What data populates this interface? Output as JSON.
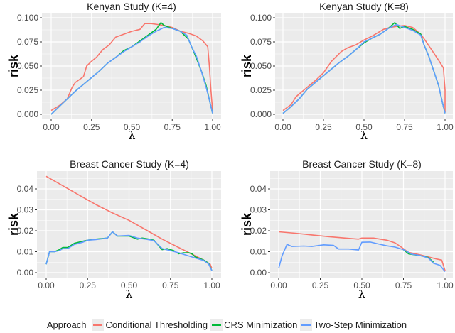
{
  "chart_data": [
    {
      "type": "line",
      "title": "Kenyan Study (K=4)",
      "xlabel": "λ",
      "ylabel": "risk",
      "xlim": [
        0,
        1
      ],
      "ylim": [
        0,
        0.1
      ],
      "xticks": [
        "0.00",
        "0.25",
        "0.50",
        "0.75",
        "1.00"
      ],
      "xtick_values": [
        0,
        0.25,
        0.5,
        0.75,
        1
      ],
      "yticks": [
        "0.000",
        "0.025",
        "0.050",
        "0.075",
        "0.100"
      ],
      "ytick_values": [
        0,
        0.025,
        0.05,
        0.075,
        0.1
      ],
      "grid": true,
      "series": [
        {
          "name": "Conditional Thresholding",
          "x": [
            0,
            0.05,
            0.1,
            0.13,
            0.15,
            0.2,
            0.22,
            0.25,
            0.28,
            0.32,
            0.36,
            0.4,
            0.45,
            0.5,
            0.55,
            0.58,
            0.62,
            0.66,
            0.7,
            0.75,
            0.8,
            0.85,
            0.9,
            0.94,
            0.97,
            0.98,
            0.99,
            1.0
          ],
          "y": [
            0.004,
            0.009,
            0.016,
            0.028,
            0.033,
            0.039,
            0.05,
            0.055,
            0.059,
            0.067,
            0.072,
            0.08,
            0.083,
            0.086,
            0.088,
            0.094,
            0.094,
            0.093,
            0.092,
            0.09,
            0.086,
            0.084,
            0.081,
            0.076,
            0.07,
            0.05,
            0.025,
            0.004
          ]
        },
        {
          "name": "CRS Minimization",
          "x": [
            0,
            0.05,
            0.1,
            0.15,
            0.2,
            0.25,
            0.3,
            0.35,
            0.4,
            0.45,
            0.5,
            0.55,
            0.6,
            0.65,
            0.68,
            0.7,
            0.75,
            0.8,
            0.85,
            0.88,
            0.9,
            0.93,
            0.96,
            0.98,
            1.0
          ],
          "y": [
            0,
            0.008,
            0.016,
            0.024,
            0.031,
            0.038,
            0.045,
            0.053,
            0.059,
            0.066,
            0.07,
            0.076,
            0.082,
            0.088,
            0.095,
            0.092,
            0.089,
            0.086,
            0.078,
            0.066,
            0.058,
            0.045,
            0.03,
            0.015,
            0.001
          ]
        },
        {
          "name": "Two-Step Minimization",
          "x": [
            0,
            0.05,
            0.1,
            0.15,
            0.2,
            0.25,
            0.3,
            0.35,
            0.4,
            0.45,
            0.5,
            0.55,
            0.6,
            0.65,
            0.7,
            0.75,
            0.8,
            0.84,
            0.87,
            0.9,
            0.93,
            0.96,
            0.98,
            1.0
          ],
          "y": [
            0,
            0.008,
            0.016,
            0.024,
            0.031,
            0.038,
            0.045,
            0.053,
            0.059,
            0.065,
            0.07,
            0.075,
            0.081,
            0.086,
            0.09,
            0.089,
            0.086,
            0.082,
            0.07,
            0.06,
            0.045,
            0.028,
            0.015,
            0.001
          ]
        }
      ]
    },
    {
      "type": "line",
      "title": "Kenyan Study (K=8)",
      "xlabel": "λ",
      "ylabel": "risk",
      "xlim": [
        0,
        1
      ],
      "ylim": [
        0,
        0.1
      ],
      "xticks": [
        "0.00",
        "0.25",
        "0.50",
        "0.75",
        "1.00"
      ],
      "xtick_values": [
        0,
        0.25,
        0.5,
        0.75,
        1
      ],
      "yticks": [
        "0.000",
        "0.025",
        "0.050",
        "0.075",
        "0.100"
      ],
      "ytick_values": [
        0,
        0.025,
        0.05,
        0.075,
        0.1
      ],
      "grid": true,
      "series": [
        {
          "name": "Conditional Thresholding",
          "x": [
            0,
            0.05,
            0.08,
            0.1,
            0.15,
            0.2,
            0.25,
            0.3,
            0.33,
            0.36,
            0.4,
            0.45,
            0.5,
            0.55,
            0.58,
            0.62,
            0.66,
            0.7,
            0.75,
            0.8,
            0.85,
            0.88,
            0.92,
            0.96,
            0.99,
            1.0,
            1.0
          ],
          "y": [
            0.004,
            0.01,
            0.018,
            0.021,
            0.028,
            0.035,
            0.043,
            0.055,
            0.06,
            0.065,
            0.069,
            0.072,
            0.077,
            0.081,
            0.084,
            0.088,
            0.09,
            0.091,
            0.092,
            0.09,
            0.083,
            0.076,
            0.066,
            0.056,
            0.048,
            0.025,
            0.002
          ]
        },
        {
          "name": "CRS Minimization",
          "x": [
            0,
            0.05,
            0.1,
            0.15,
            0.2,
            0.25,
            0.3,
            0.35,
            0.4,
            0.45,
            0.5,
            0.55,
            0.6,
            0.65,
            0.69,
            0.72,
            0.75,
            0.8,
            0.85,
            0.87,
            0.9,
            0.93,
            0.96,
            0.98,
            1.0
          ],
          "y": [
            0.001,
            0.008,
            0.016,
            0.026,
            0.033,
            0.04,
            0.047,
            0.054,
            0.06,
            0.067,
            0.074,
            0.079,
            0.083,
            0.089,
            0.095,
            0.089,
            0.091,
            0.088,
            0.083,
            0.072,
            0.06,
            0.045,
            0.03,
            0.015,
            0.001
          ]
        },
        {
          "name": "Two-Step Minimization",
          "x": [
            0,
            0.05,
            0.1,
            0.15,
            0.2,
            0.25,
            0.3,
            0.35,
            0.4,
            0.45,
            0.5,
            0.55,
            0.6,
            0.65,
            0.7,
            0.75,
            0.8,
            0.85,
            0.87,
            0.9,
            0.93,
            0.96,
            0.98,
            1.0
          ],
          "y": [
            0.001,
            0.008,
            0.016,
            0.026,
            0.033,
            0.04,
            0.047,
            0.054,
            0.06,
            0.067,
            0.075,
            0.079,
            0.083,
            0.089,
            0.093,
            0.09,
            0.087,
            0.082,
            0.072,
            0.06,
            0.045,
            0.03,
            0.015,
            0.001
          ]
        }
      ]
    },
    {
      "type": "line",
      "title": "Breast Cancer Study (K=4)",
      "xlabel": "λ",
      "ylabel": "risk",
      "xlim": [
        0,
        1
      ],
      "ylim": [
        0,
        0.047
      ],
      "xticks": [
        "0.00",
        "0.25",
        "0.50",
        "0.75",
        "1.00"
      ],
      "xtick_values": [
        0,
        0.25,
        0.5,
        0.75,
        1
      ],
      "yticks": [
        "0.00",
        "0.01",
        "0.02",
        "0.03",
        "0.04"
      ],
      "ytick_values": [
        0,
        0.01,
        0.02,
        0.03,
        0.04
      ],
      "grid": true,
      "series": [
        {
          "name": "Conditional Thresholding",
          "x": [
            0,
            0.1,
            0.2,
            0.3,
            0.4,
            0.5,
            0.6,
            0.7,
            0.8,
            0.9,
            0.95,
            0.99,
            1.0
          ],
          "y": [
            0.046,
            0.0415,
            0.037,
            0.0325,
            0.0285,
            0.025,
            0.0205,
            0.016,
            0.012,
            0.008,
            0.006,
            0.004,
            0.002
          ]
        },
        {
          "name": "CRS Minimization",
          "x": [
            0,
            0.02,
            0.05,
            0.08,
            0.1,
            0.13,
            0.17,
            0.22,
            0.25,
            0.3,
            0.37,
            0.4,
            0.43,
            0.5,
            0.55,
            0.58,
            0.62,
            0.65,
            0.7,
            0.73,
            0.77,
            0.8,
            0.83,
            0.86,
            0.88,
            0.9,
            0.95,
            0.98,
            1.0
          ],
          "y": [
            0.004,
            0.01,
            0.01,
            0.011,
            0.012,
            0.012,
            0.014,
            0.015,
            0.0155,
            0.016,
            0.0165,
            0.0195,
            0.0175,
            0.0175,
            0.016,
            0.0165,
            0.016,
            0.0155,
            0.011,
            0.0115,
            0.0105,
            0.009,
            0.0095,
            0.0095,
            0.009,
            0.0075,
            0.006,
            0.0045,
            0.001
          ]
        },
        {
          "name": "Two-Step Minimization",
          "x": [
            0,
            0.02,
            0.05,
            0.08,
            0.1,
            0.13,
            0.17,
            0.22,
            0.25,
            0.3,
            0.37,
            0.4,
            0.43,
            0.5,
            0.55,
            0.6,
            0.65,
            0.7,
            0.75,
            0.8,
            0.85,
            0.9,
            0.95,
            0.98,
            1.0
          ],
          "y": [
            0.004,
            0.01,
            0.01,
            0.0105,
            0.0115,
            0.0115,
            0.0135,
            0.0145,
            0.0155,
            0.0158,
            0.0165,
            0.0195,
            0.0175,
            0.0178,
            0.0165,
            0.016,
            0.0153,
            0.0115,
            0.0105,
            0.0095,
            0.0082,
            0.007,
            0.0058,
            0.0042,
            0.001
          ]
        }
      ]
    },
    {
      "type": "line",
      "title": "Breast Cancer Study (K=8)",
      "xlabel": "λ",
      "ylabel": "risk",
      "xlim": [
        0,
        1
      ],
      "ylim": [
        0,
        0.047
      ],
      "xticks": [
        "0.00",
        "0.25",
        "0.50",
        "0.75",
        "1.00"
      ],
      "xtick_values": [
        0,
        0.25,
        0.5,
        0.75,
        1
      ],
      "yticks": [
        "0.00",
        "0.01",
        "0.02",
        "0.03",
        "0.04"
      ],
      "ytick_values": [
        0,
        0.01,
        0.02,
        0.03,
        0.04
      ],
      "grid": true,
      "series": [
        {
          "name": "Conditional Thresholding",
          "x": [
            0,
            0.1,
            0.2,
            0.3,
            0.4,
            0.48,
            0.5,
            0.57,
            0.65,
            0.7,
            0.74,
            0.78,
            0.85,
            0.9,
            0.95,
            0.98,
            1.0
          ],
          "y": [
            0.0195,
            0.0188,
            0.018,
            0.0172,
            0.0165,
            0.016,
            0.0165,
            0.0165,
            0.0155,
            0.0142,
            0.012,
            0.0097,
            0.0085,
            0.0075,
            0.0065,
            0.006,
            0.001
          ]
        },
        {
          "name": "CRS Minimization",
          "x": [
            0.75,
            0.78,
            0.82,
            0.86,
            0.9,
            0.93
          ],
          "y": [
            0.011,
            0.009,
            0.0085,
            0.008,
            0.0072,
            0.005
          ]
        },
        {
          "name": "Two-Step Minimization",
          "x": [
            0,
            0.02,
            0.05,
            0.08,
            0.15,
            0.2,
            0.27,
            0.33,
            0.36,
            0.42,
            0.48,
            0.5,
            0.55,
            0.6,
            0.65,
            0.7,
            0.75,
            0.8,
            0.85,
            0.9,
            0.93,
            0.97,
            1.0
          ],
          "y": [
            0.002,
            0.008,
            0.0135,
            0.0125,
            0.0127,
            0.0125,
            0.0133,
            0.013,
            0.0113,
            0.0113,
            0.0108,
            0.0145,
            0.0146,
            0.0137,
            0.0128,
            0.0122,
            0.011,
            0.0088,
            0.0082,
            0.007,
            0.0045,
            0.0035,
            0.0005
          ]
        }
      ]
    }
  ],
  "legend": {
    "title": "Approach",
    "placement": "bottom",
    "items": [
      {
        "label": "Conditional Thresholding",
        "color": "#F8766D"
      },
      {
        "label": "CRS Minimization",
        "color": "#00BA38"
      },
      {
        "label": "Two-Step Minimization",
        "color": "#619CFF"
      }
    ]
  },
  "colors": {
    "panel_background": "#EBEBEB",
    "grid": "#FFFFFF"
  }
}
